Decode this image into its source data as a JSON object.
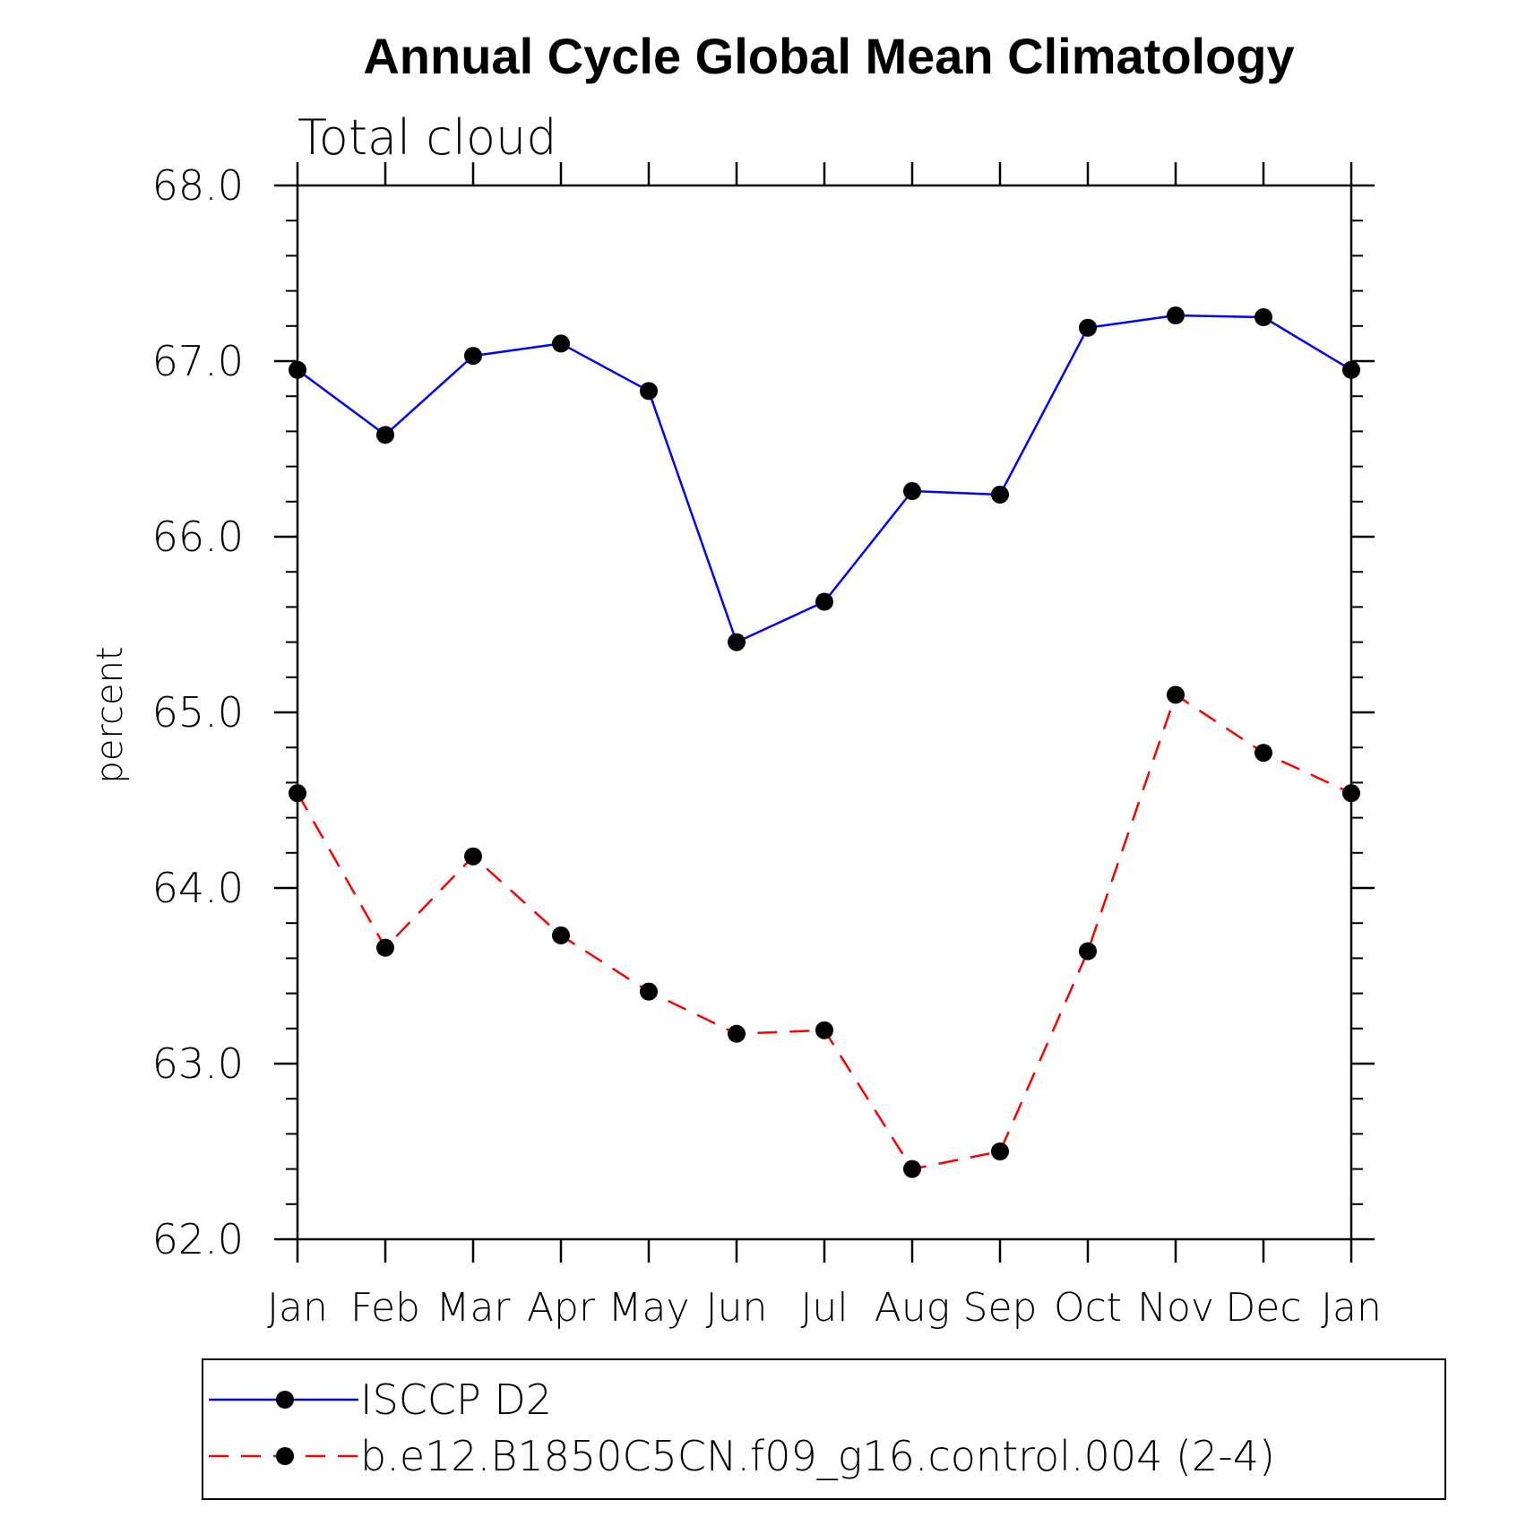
{
  "chart_data": {
    "type": "line",
    "title": "Annual Cycle Global Mean Climatology",
    "subtitle": "Total cloud",
    "xlabel": "",
    "ylabel": "percent",
    "categories": [
      "Jan",
      "Feb",
      "Mar",
      "Apr",
      "May",
      "Jun",
      "Jul",
      "Aug",
      "Sep",
      "Oct",
      "Nov",
      "Dec",
      "Jan"
    ],
    "ylim": [
      62.0,
      68.0
    ],
    "y_major_ticks": [
      62.0,
      63.0,
      64.0,
      65.0,
      66.0,
      67.0,
      68.0
    ],
    "y_tick_labels": [
      "62.0",
      "63.0",
      "64.0",
      "65.0",
      "66.0",
      "67.0",
      "68.0"
    ],
    "y_minor_step": 0.2,
    "grid": false,
    "legend_position": "bottom",
    "series": [
      {
        "name": "ISCCP D2",
        "color": "#0000ff",
        "line_style": "solid",
        "marker": "filled-circle",
        "marker_color": "#000000",
        "values": [
          66.95,
          66.58,
          67.03,
          67.1,
          66.83,
          65.4,
          65.63,
          66.26,
          66.24,
          67.19,
          67.26,
          67.25,
          66.95
        ]
      },
      {
        "name": "b.e12.B1850C5CN.f09_g16.control.004 (2-4)",
        "color": "#ff0000",
        "line_style": "dashed",
        "marker": "filled-circle",
        "marker_color": "#000000",
        "values": [
          64.54,
          63.66,
          64.18,
          63.73,
          63.41,
          63.17,
          63.19,
          62.4,
          62.5,
          63.64,
          65.1,
          64.77,
          64.54
        ]
      }
    ]
  }
}
